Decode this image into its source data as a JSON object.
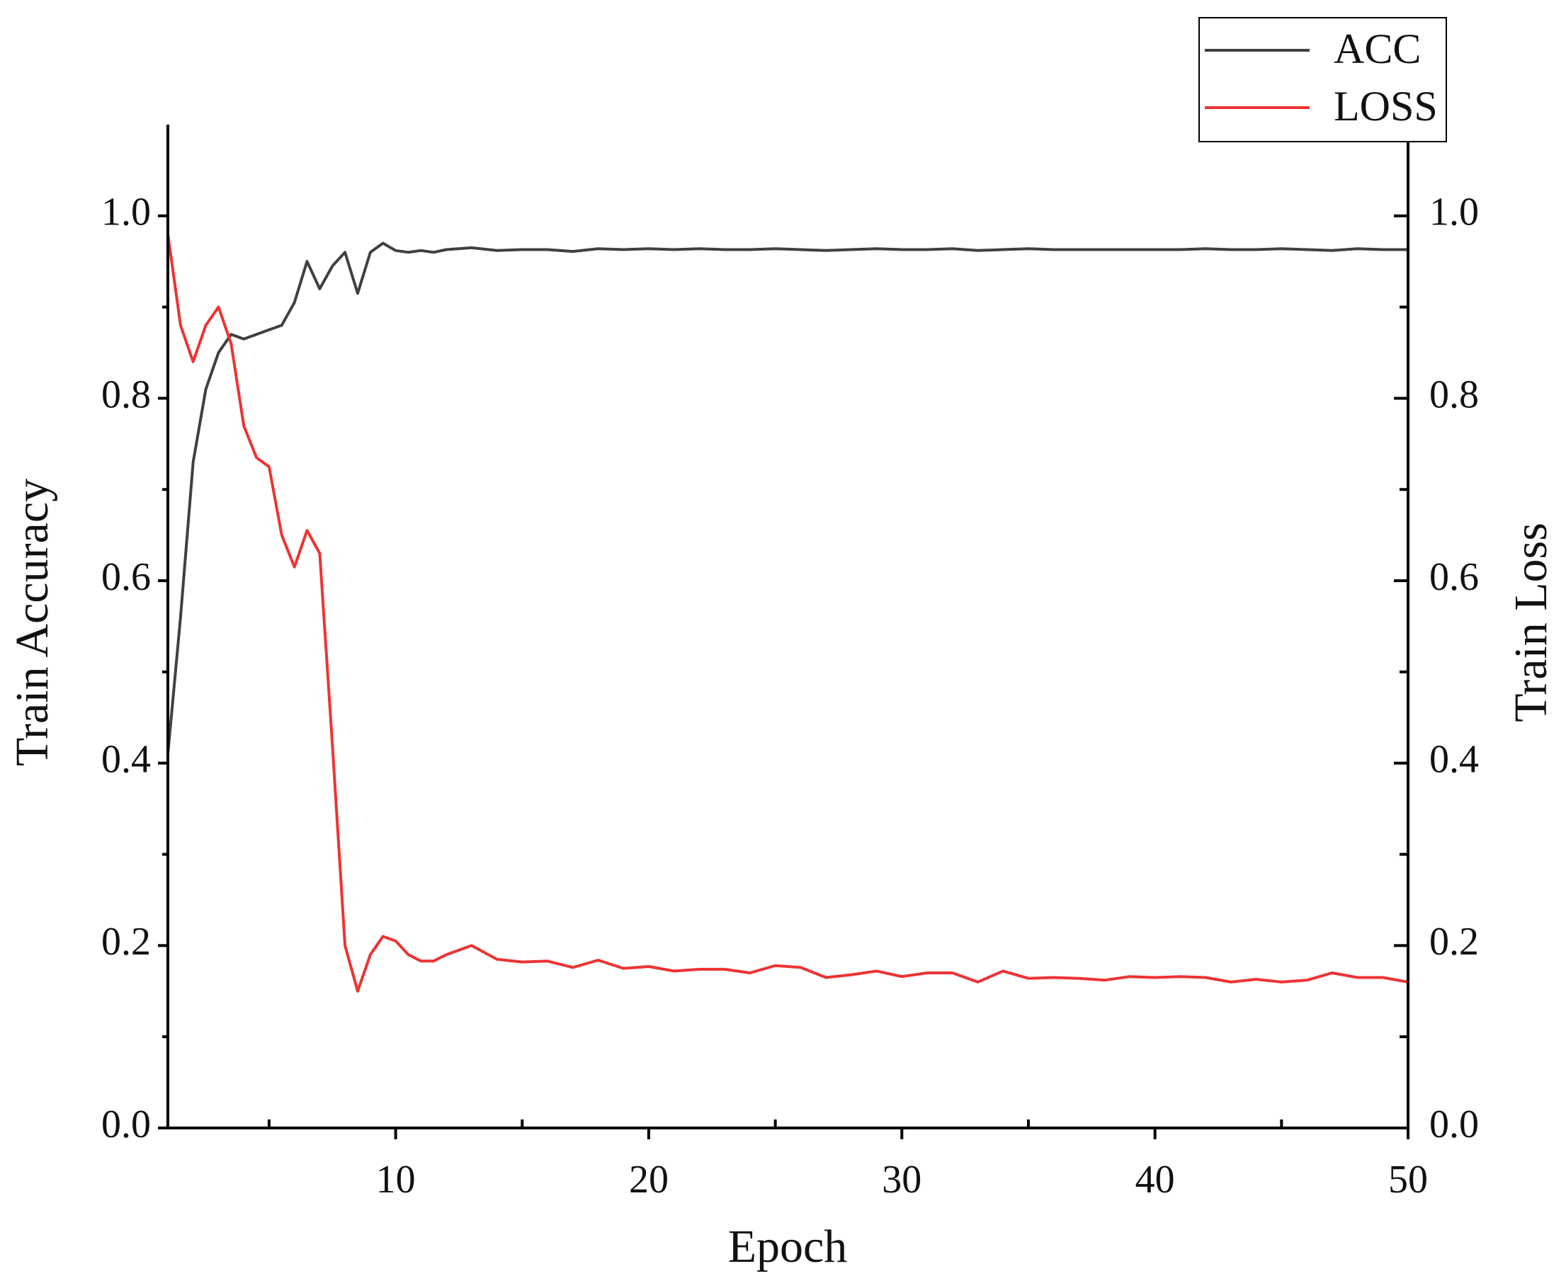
{
  "chart_data": {
    "type": "line",
    "xlabel": "Epoch",
    "ylabel": "Train Accuracy",
    "y2label": "Train Loss",
    "x": [
      1,
      1.5,
      2,
      2.5,
      3,
      3.5,
      4,
      4.5,
      5,
      5.5,
      6,
      6.5,
      7,
      7.5,
      8,
      8.5,
      9,
      9.5,
      10,
      10.5,
      11,
      11.5,
      12,
      13,
      14,
      15,
      16,
      17,
      18,
      19,
      20,
      21,
      22,
      23,
      24,
      25,
      26,
      27,
      28,
      29,
      30,
      31,
      32,
      33,
      34,
      35,
      36,
      37,
      38,
      39,
      40,
      41,
      42,
      43,
      44,
      45,
      46,
      47,
      48,
      49,
      50
    ],
    "series": [
      {
        "name": "ACC",
        "color": "#404040",
        "axis": "y",
        "values": [
          0.41,
          0.56,
          0.73,
          0.81,
          0.85,
          0.87,
          0.865,
          0.87,
          0.875,
          0.88,
          0.905,
          0.95,
          0.92,
          0.945,
          0.96,
          0.915,
          0.96,
          0.97,
          0.962,
          0.96,
          0.962,
          0.96,
          0.963,
          0.965,
          0.962,
          0.963,
          0.963,
          0.961,
          0.964,
          0.963,
          0.964,
          0.963,
          0.964,
          0.963,
          0.963,
          0.964,
          0.963,
          0.962,
          0.963,
          0.964,
          0.963,
          0.963,
          0.964,
          0.962,
          0.963,
          0.964,
          0.963,
          0.963,
          0.963,
          0.963,
          0.963,
          0.963,
          0.964,
          0.963,
          0.963,
          0.964,
          0.963,
          0.962,
          0.964,
          0.963,
          0.963
        ]
      },
      {
        "name": "LOSS",
        "color": "#ee3333",
        "axis": "y2",
        "values": [
          0.98,
          0.88,
          0.84,
          0.88,
          0.9,
          0.86,
          0.77,
          0.735,
          0.725,
          0.65,
          0.615,
          0.655,
          0.63,
          0.42,
          0.2,
          0.15,
          0.19,
          0.21,
          0.205,
          0.19,
          0.183,
          0.183,
          0.19,
          0.2,
          0.185,
          0.182,
          0.183,
          0.176,
          0.184,
          0.175,
          0.177,
          0.172,
          0.174,
          0.174,
          0.17,
          0.178,
          0.176,
          0.165,
          0.168,
          0.172,
          0.166,
          0.17,
          0.17,
          0.16,
          0.172,
          0.164,
          0.165,
          0.164,
          0.162,
          0.166,
          0.165,
          0.166,
          0.165,
          0.16,
          0.163,
          0.16,
          0.162,
          0.17,
          0.165,
          0.165,
          0.16
        ]
      }
    ],
    "xlim": [
      1,
      50
    ],
    "xticks": [
      10,
      20,
      30,
      40,
      50
    ],
    "ylim": [
      0,
      1.1
    ],
    "yticks": [
      {
        "value": 0,
        "label": "0.0"
      },
      0.2,
      0.4,
      0.6,
      0.8,
      {
        "value": 1,
        "label": "1.0"
      }
    ],
    "y2lim": [
      0,
      1.1
    ],
    "y2ticks": [
      {
        "value": 0,
        "label": "0.0"
      },
      0.2,
      0.4,
      0.6,
      0.8,
      {
        "value": 1,
        "label": "1.0"
      }
    ],
    "grid": false,
    "legend": "upper right"
  }
}
